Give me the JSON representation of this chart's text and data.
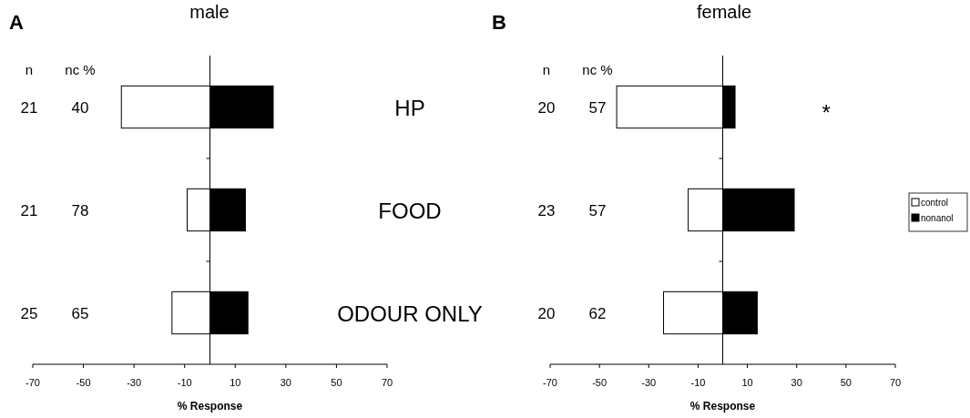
{
  "chart_data": [
    {
      "type": "bar",
      "orientation": "horizontal",
      "stacked": true,
      "title": "male",
      "xlabel": "% Response",
      "categories": [
        "HP",
        "FOOD",
        "ODOUR ONLY"
      ],
      "series": [
        {
          "color": "#ffffff",
          "values": [
            -35,
            -9,
            -15
          ]
        },
        {
          "color": "#000000",
          "values": [
            25,
            14,
            15
          ]
        }
      ],
      "xlim": [
        -70,
        70
      ],
      "xticks": [
        -70,
        -50,
        -30,
        -10,
        10,
        30,
        50,
        70
      ],
      "legend": false,
      "annotations": [
        "A",
        "n",
        "nc %",
        "21",
        "40",
        "21",
        "78",
        "25",
        "65"
      ]
    },
    {
      "type": "bar",
      "orientation": "horizontal",
      "stacked": true,
      "title": "female",
      "xlabel": "% Response",
      "categories": [
        null,
        null,
        null
      ],
      "series": [
        {
          "name": "control",
          "color": "#ffffff",
          "values": [
            -43,
            -14,
            -24
          ]
        },
        {
          "name": "nonanol",
          "color": "#000000",
          "values": [
            5,
            29,
            14
          ]
        }
      ],
      "xlim": [
        -70,
        70
      ],
      "xticks": [
        -70,
        -50,
        -30,
        -10,
        10,
        30,
        50,
        70
      ],
      "legend": "right",
      "annotations": [
        "B",
        "n",
        "nc %",
        "20",
        "57",
        "23",
        "57",
        "20",
        "62",
        "*"
      ]
    }
  ]
}
